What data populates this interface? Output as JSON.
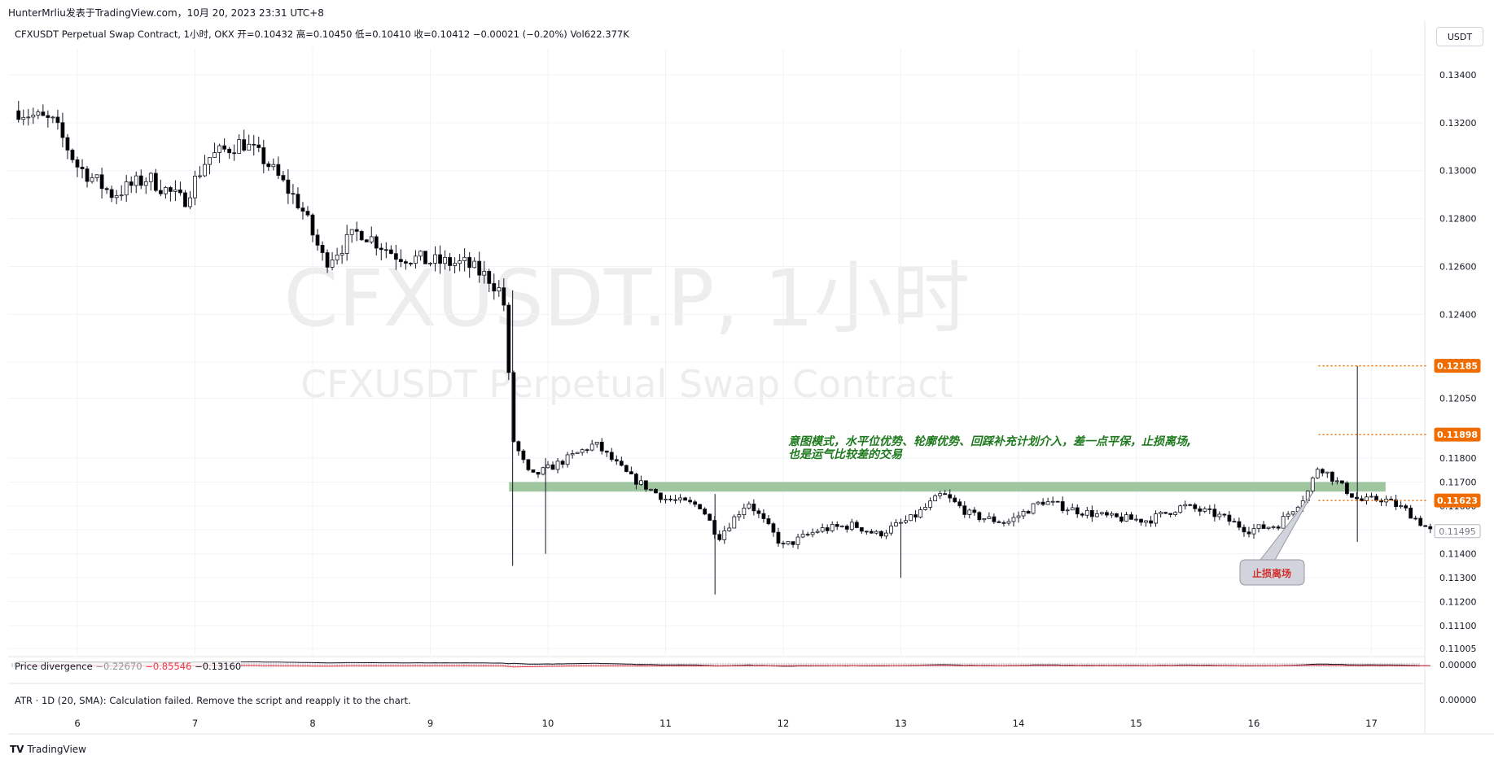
{
  "header": {
    "meta": "HunterMrliu发表于TradingView.com，10月 20, 2023 23:31 UTC+8",
    "legend": "CFXUSDT Perpetual Swap Contract, 1小时, OKX  开=0.10432  高=0.10450  低=0.10410  收=0.10412  −0.00021 (−0.20%)  Vol622.377K",
    "currency": "USDT"
  },
  "watermark": {
    "symbol": "CFXUSDT.P, 1小时",
    "description": "CFXUSDT Perpetual Swap Contract"
  },
  "annotation": {
    "line1": "意图模式，水平位优势、轮廓优势、回踩补充计划介入，差一点平保，止损离场,",
    "line2": "也是运气比较差的交易"
  },
  "callout": {
    "label": "止损离场"
  },
  "price_tags": [
    {
      "value": "0.12185",
      "color": "#ef6c00"
    },
    {
      "value": "0.11898",
      "color": "#ef6c00"
    },
    {
      "value": "0.11623",
      "color": "#ef6c00"
    },
    {
      "value": "0.11495",
      "color": "#9e9e9e"
    }
  ],
  "indicators": {
    "price_divergence": {
      "label": "Price divergence",
      "v1": "−0.22670",
      "v2": "−0.85546",
      "v3": "−0.13160",
      "axis_label": "0.00000"
    },
    "atr": {
      "label": "ATR · 1D (20, SMA): Calculation failed. Remove the script and reapply it to the chart.",
      "axis_label": "0.00000"
    }
  },
  "brand": {
    "name": "TradingView",
    "logo": "tv-logo-icon"
  },
  "colors": {
    "bullish": "#ffffff",
    "bearish": "#000000",
    "zone": "#8fbc8f",
    "stop_line": "#ef6c00",
    "divergence_line": "#f23645"
  },
  "chart_data": {
    "type": "candlestick",
    "symbol": "CFXUSDT.P",
    "interval": "1小时",
    "x_tick_labels": [
      "6",
      "7",
      "8",
      "9",
      "10",
      "11",
      "12",
      "13",
      "14",
      "15",
      "16",
      "17"
    ],
    "y_tick_labels": [
      "0.13400",
      "0.13200",
      "0.13000",
      "0.12800",
      "0.12600",
      "0.12400",
      "0.12200",
      "0.12050",
      "0.11800",
      "0.11700",
      "0.11600",
      "0.11500",
      "0.11400",
      "0.11300",
      "0.11200",
      "0.11100",
      "0.11005"
    ],
    "ylim": [
      0.11005,
      0.1345
    ],
    "zone": {
      "low": 0.1166,
      "high": 0.117,
      "from_day": 9.67,
      "to_day": 17.12
    },
    "horizontal_levels": [
      {
        "value": 0.12185,
        "from_day": 16.55
      },
      {
        "value": 0.11898,
        "from_day": 16.55
      },
      {
        "value": 0.11623,
        "from_day": 16.55
      }
    ],
    "last_price": 0.11495,
    "trend_points_day_price": [
      [
        5.5,
        0.1325
      ],
      [
        5.8,
        0.132
      ],
      [
        6.0,
        0.1302
      ],
      [
        6.3,
        0.129
      ],
      [
        6.6,
        0.1297
      ],
      [
        6.9,
        0.1287
      ],
      [
        7.1,
        0.1305
      ],
      [
        7.4,
        0.1312
      ],
      [
        7.6,
        0.1304
      ],
      [
        7.9,
        0.1285
      ],
      [
        8.1,
        0.1262
      ],
      [
        8.4,
        0.1275
      ],
      [
        8.7,
        0.1265
      ],
      [
        9.0,
        0.1262
      ],
      [
        9.3,
        0.1261
      ],
      [
        9.5,
        0.1255
      ],
      [
        9.62,
        0.1248
      ],
      [
        9.7,
        0.1188
      ],
      [
        9.85,
        0.1172
      ],
      [
        10.1,
        0.1178
      ],
      [
        10.4,
        0.1186
      ],
      [
        10.7,
        0.1172
      ],
      [
        11.0,
        0.1163
      ],
      [
        11.3,
        0.116
      ],
      [
        11.45,
        0.1147
      ],
      [
        11.7,
        0.1162
      ],
      [
        12.0,
        0.1143
      ],
      [
        12.3,
        0.115
      ],
      [
        12.6,
        0.1152
      ],
      [
        12.8,
        0.1148
      ],
      [
        13.1,
        0.1155
      ],
      [
        13.35,
        0.1165
      ],
      [
        13.6,
        0.1156
      ],
      [
        13.9,
        0.1153
      ],
      [
        14.2,
        0.1162
      ],
      [
        14.5,
        0.1158
      ],
      [
        14.8,
        0.1155
      ],
      [
        15.1,
        0.1154
      ],
      [
        15.4,
        0.116
      ],
      [
        15.7,
        0.1156
      ],
      [
        15.95,
        0.115
      ],
      [
        16.2,
        0.1152
      ],
      [
        16.45,
        0.1165
      ],
      [
        16.55,
        0.1177
      ],
      [
        16.75,
        0.1168
      ],
      [
        16.9,
        0.1162
      ],
      [
        17.1,
        0.1163
      ],
      [
        17.3,
        0.1158
      ],
      [
        17.5,
        0.11495
      ]
    ],
    "spikes_day_low_high": [
      [
        9.7,
        0.1135,
        0.125
      ],
      [
        9.98,
        0.114,
        0.118
      ],
      [
        11.42,
        0.1123,
        0.1165
      ],
      [
        13.0,
        0.113,
        0.1152
      ],
      [
        16.88,
        0.1145,
        0.12185
      ]
    ]
  }
}
